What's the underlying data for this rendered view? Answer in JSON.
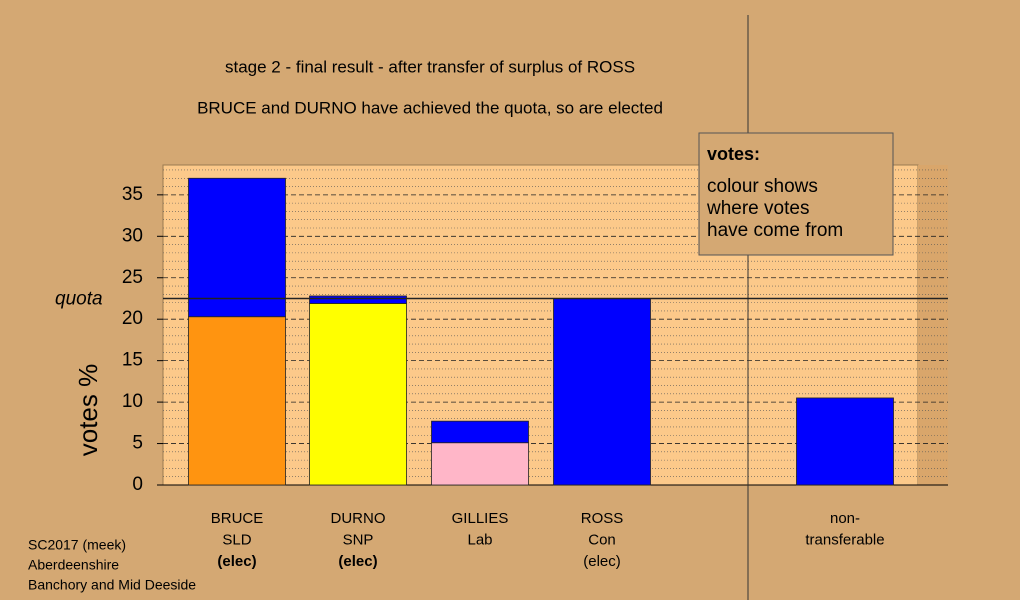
{
  "chart_data": {
    "type": "bar",
    "stacked": true,
    "title": "stage 2 - final result - after transfer of surplus of ROSS",
    "subtitle": "BRUCE and DURNO have achieved the quota, so are elected",
    "y_label": "votes %",
    "categories": [
      [
        "BRUCE",
        "SLD",
        "(elec)"
      ],
      [
        "DURNO",
        "SNP",
        "(elec)"
      ],
      [
        "GILLIES",
        "Lab"
      ],
      [
        "ROSS",
        "Con",
        "(elec)"
      ],
      [
        "non-",
        "transferable"
      ]
    ],
    "bold_lines": [
      [
        2
      ],
      [
        2
      ],
      [],
      [],
      []
    ],
    "series": [
      {
        "color": "#ff9410",
        "values": [
          20.3,
          null,
          null,
          null,
          null
        ]
      },
      {
        "color": "#ffff00",
        "values": [
          null,
          21.9,
          null,
          null,
          null
        ]
      },
      {
        "color": "#ffb6c8",
        "values": [
          null,
          null,
          5.1,
          null,
          null
        ]
      },
      {
        "color": "#0000ff",
        "values": [
          16.7,
          0.9,
          2.6,
          22.5,
          10.5
        ]
      }
    ],
    "quota": {
      "label": "quota",
      "value": 22.5
    },
    "ylim": [
      0,
      38.6
    ],
    "yticks": [
      0,
      5,
      10,
      15,
      20,
      25,
      30,
      35
    ],
    "minor_yticks": [
      1,
      2,
      3,
      4,
      6,
      7,
      8,
      9,
      11,
      12,
      13,
      14,
      16,
      17,
      18,
      19,
      21,
      22,
      23,
      24,
      26,
      27,
      28,
      29,
      31,
      32,
      33,
      34,
      36,
      37,
      38
    ],
    "grid": true,
    "legend_box": {
      "heading": "votes:",
      "lines": [
        "colour shows",
        "where votes",
        "have come from"
      ]
    },
    "footer": [
      "SC2017 (meek)",
      "Aberdeenshire",
      "Banchory and Mid Deeside"
    ]
  }
}
